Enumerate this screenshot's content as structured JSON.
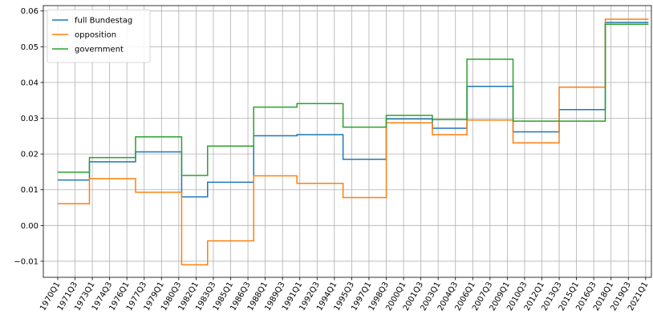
{
  "chart_data": {
    "type": "line",
    "title": "",
    "xlabel": "",
    "ylabel": "",
    "x_tick_labels": [
      "1970Q1",
      "1971Q3",
      "1973Q1",
      "1974Q3",
      "1976Q1",
      "1977Q3",
      "1979Q1",
      "1980Q3",
      "1982Q1",
      "1983Q3",
      "1985Q1",
      "1986Q3",
      "1988Q1",
      "1989Q3",
      "1991Q1",
      "1992Q3",
      "1994Q1",
      "1995Q3",
      "1997Q1",
      "1998Q3",
      "2000Q1",
      "2001Q3",
      "2003Q1",
      "2004Q3",
      "2006Q1",
      "2007Q3",
      "2009Q1",
      "2010Q3",
      "2012Q1",
      "2013Q3",
      "2015Q1",
      "2016Q3",
      "2018Q1",
      "2019Q3",
      "2021Q1"
    ],
    "y_ticks": [
      -0.01,
      0.0,
      0.01,
      0.02,
      0.03,
      0.04,
      0.05,
      0.06
    ],
    "y_tick_labels": [
      "−0.01",
      "0.00",
      "0.01",
      "0.02",
      "0.03",
      "0.04",
      "0.05",
      "0.06"
    ],
    "ylim": [
      -0.0145,
      0.0615
    ],
    "xlim_quarters": [
      "1968Q4",
      "2021Q3"
    ],
    "grid": true,
    "legend_position": "top-left",
    "series": [
      {
        "name": "full Bundestag",
        "color": "#1f77b4",
        "steps": [
          {
            "start": "1970Q1",
            "end": "1972Q4",
            "value": 0.0127
          },
          {
            "start": "1972Q4",
            "end": "1976Q4",
            "value": 0.0178
          },
          {
            "start": "1976Q4",
            "end": "1980Q4",
            "value": 0.0206
          },
          {
            "start": "1980Q4",
            "end": "1983Q1",
            "value": 0.008
          },
          {
            "start": "1983Q1",
            "end": "1987Q1",
            "value": 0.0121
          },
          {
            "start": "1987Q1",
            "end": "1990Q4",
            "value": 0.0251
          },
          {
            "start": "1990Q4",
            "end": "1994Q4",
            "value": 0.0254
          },
          {
            "start": "1994Q4",
            "end": "1998Q3",
            "value": 0.0185
          },
          {
            "start": "1998Q3",
            "end": "2002Q3",
            "value": 0.0298
          },
          {
            "start": "2002Q3",
            "end": "2005Q3",
            "value": 0.0272
          },
          {
            "start": "2005Q3",
            "end": "2009Q3",
            "value": 0.0389
          },
          {
            "start": "2009Q3",
            "end": "2013Q3",
            "value": 0.0262
          },
          {
            "start": "2013Q3",
            "end": "2017Q3",
            "value": 0.0324
          },
          {
            "start": "2017Q3",
            "end": "2021Q2",
            "value": 0.0568
          }
        ]
      },
      {
        "name": "opposition",
        "color": "#ff7f0e",
        "steps": [
          {
            "start": "1970Q1",
            "end": "1972Q4",
            "value": 0.0061
          },
          {
            "start": "1972Q4",
            "end": "1976Q4",
            "value": 0.0131
          },
          {
            "start": "1976Q4",
            "end": "1980Q4",
            "value": 0.0093
          },
          {
            "start": "1980Q4",
            "end": "1983Q1",
            "value": -0.011
          },
          {
            "start": "1983Q1",
            "end": "1987Q1",
            "value": -0.0043
          },
          {
            "start": "1987Q1",
            "end": "1990Q4",
            "value": 0.0139
          },
          {
            "start": "1990Q4",
            "end": "1994Q4",
            "value": 0.0118
          },
          {
            "start": "1994Q4",
            "end": "1998Q3",
            "value": 0.0078
          },
          {
            "start": "1998Q3",
            "end": "2002Q3",
            "value": 0.0287
          },
          {
            "start": "2002Q3",
            "end": "2005Q3",
            "value": 0.0254
          },
          {
            "start": "2005Q3",
            "end": "2009Q3",
            "value": 0.0295
          },
          {
            "start": "2009Q3",
            "end": "2013Q3",
            "value": 0.0231
          },
          {
            "start": "2013Q3",
            "end": "2017Q3",
            "value": 0.0387
          },
          {
            "start": "2017Q3",
            "end": "2021Q2",
            "value": 0.0577
          }
        ]
      },
      {
        "name": "government",
        "color": "#2ca02c",
        "steps": [
          {
            "start": "1970Q1",
            "end": "1972Q4",
            "value": 0.0149
          },
          {
            "start": "1972Q4",
            "end": "1976Q4",
            "value": 0.019
          },
          {
            "start": "1976Q4",
            "end": "1980Q4",
            "value": 0.0248
          },
          {
            "start": "1980Q4",
            "end": "1983Q1",
            "value": 0.014
          },
          {
            "start": "1983Q1",
            "end": "1987Q1",
            "value": 0.0222
          },
          {
            "start": "1987Q1",
            "end": "1990Q4",
            "value": 0.0331
          },
          {
            "start": "1990Q4",
            "end": "1994Q4",
            "value": 0.0341
          },
          {
            "start": "1994Q4",
            "end": "1998Q3",
            "value": 0.0275
          },
          {
            "start": "1998Q3",
            "end": "2002Q3",
            "value": 0.0308
          },
          {
            "start": "2002Q3",
            "end": "2005Q3",
            "value": 0.0296
          },
          {
            "start": "2005Q3",
            "end": "2009Q3",
            "value": 0.0465
          },
          {
            "start": "2009Q3",
            "end": "2013Q3",
            "value": 0.0292
          },
          {
            "start": "2013Q3",
            "end": "2017Q3",
            "value": 0.0292
          },
          {
            "start": "2017Q3",
            "end": "2021Q2",
            "value": 0.0563
          }
        ]
      }
    ]
  }
}
